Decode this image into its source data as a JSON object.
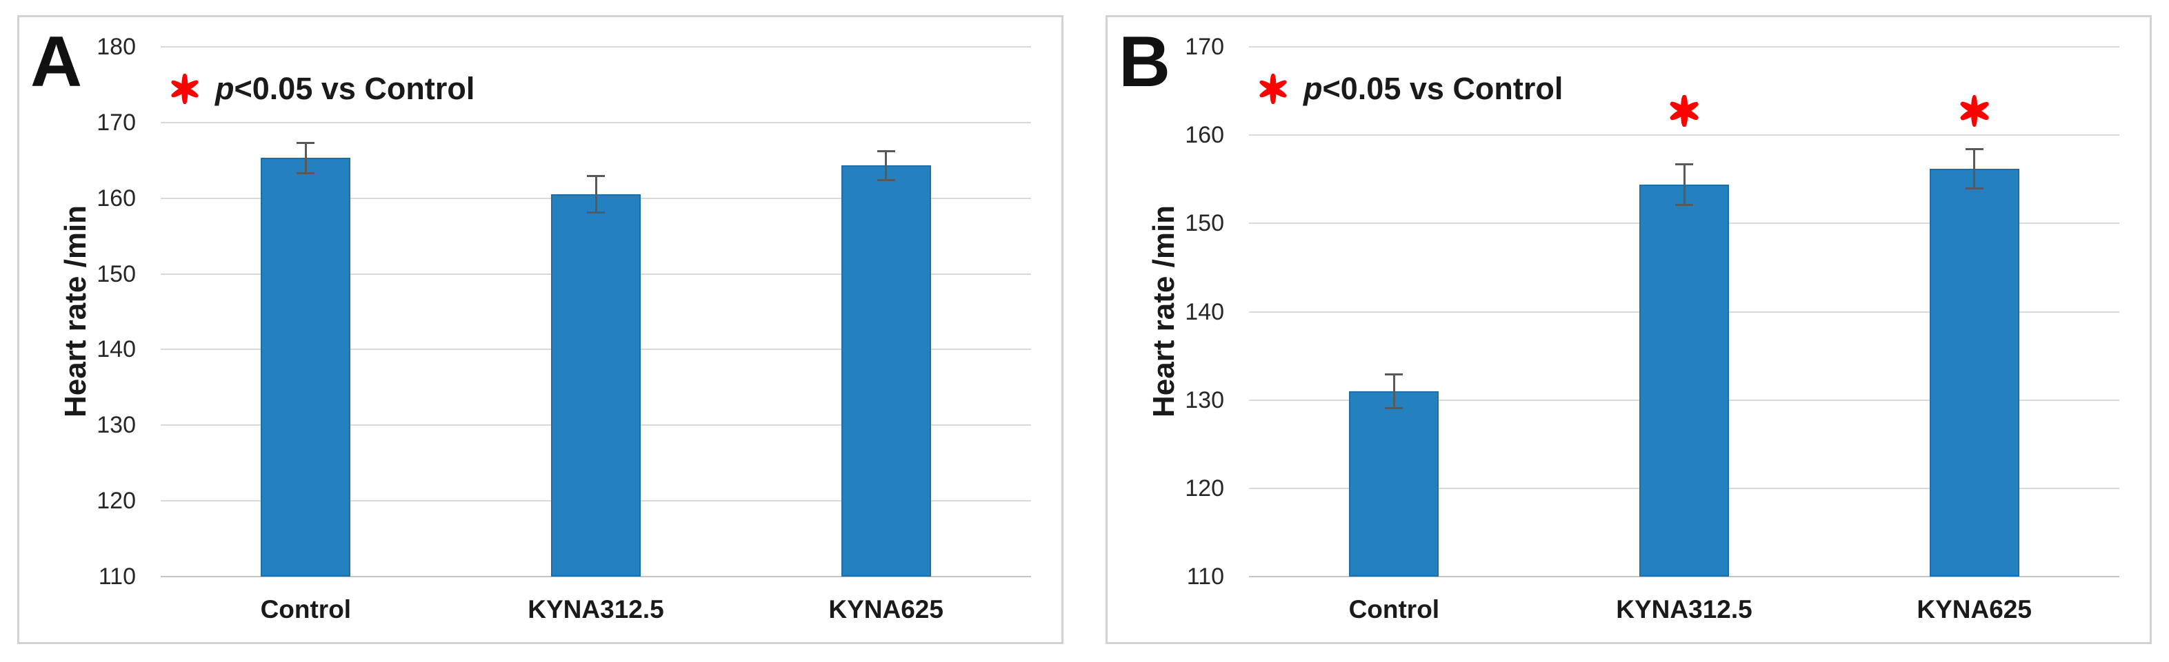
{
  "colors": {
    "bar_fill": "#2580BF",
    "bar_edge": "#1F6DA7",
    "error_bar": "#595959",
    "gridline": "#d9d9d9",
    "baseline": "#c4c4c4",
    "significance_red": "#FF0000",
    "panel_border": "#d2d2d2",
    "text_dark": "#1a1a1a"
  },
  "chart_data": [
    {
      "type": "bar",
      "panel_label": "A",
      "legend": {
        "icon": "asterisk-icon",
        "p_italic": "p",
        "rest": "<0.05 vs Control",
        "full": "p<0.05 vs Control"
      },
      "ylabel": "Heart rate /min",
      "ylim": [
        110,
        180
      ],
      "yticks": [
        180,
        170,
        160,
        150,
        140,
        130,
        120,
        110
      ],
      "categories": [
        "Control",
        "KYNA312.5",
        "KYNA625"
      ],
      "values": [
        165.3,
        160.5,
        164.3
      ],
      "errors": [
        2.0,
        2.4,
        1.9
      ],
      "significant": [
        false,
        false,
        false
      ],
      "grid": "horizontal",
      "legend_position": "top-left"
    },
    {
      "type": "bar",
      "panel_label": "B",
      "legend": {
        "icon": "asterisk-icon",
        "p_italic": "p",
        "rest": "<0.05 vs Control",
        "full": "p<0.05 vs Control"
      },
      "ylabel": "Heart rate /min",
      "ylim": [
        110,
        170
      ],
      "yticks": [
        170,
        160,
        150,
        140,
        130,
        120,
        110
      ],
      "categories": [
        "Control",
        "KYNA312.5",
        "KYNA625"
      ],
      "values": [
        131.0,
        154.4,
        156.2
      ],
      "errors": [
        1.9,
        2.3,
        2.2
      ],
      "significant": [
        false,
        true,
        true
      ],
      "grid": "horizontal",
      "legend_position": "top-left"
    }
  ]
}
